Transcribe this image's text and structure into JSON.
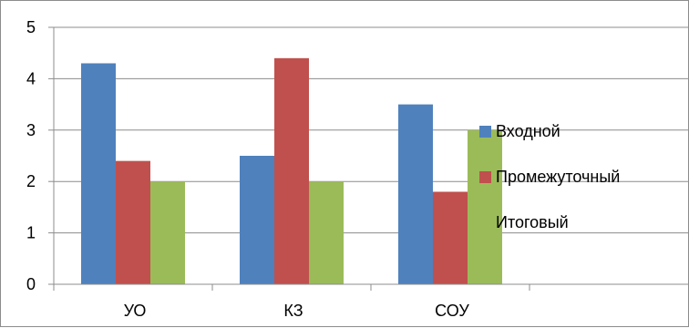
{
  "chart_data": {
    "type": "bar",
    "categories": [
      "УО",
      "КЗ",
      "СОУ"
    ],
    "series": [
      {
        "name": "Входной",
        "values": [
          4.3,
          2.5,
          3.5
        ],
        "color": "#4F81BD"
      },
      {
        "name": "Промежуточный",
        "values": [
          2.4,
          4.4,
          1.8
        ],
        "color": "#C0504D"
      },
      {
        "name": "Итоговый",
        "values": [
          2.0,
          2.0,
          3.0
        ],
        "color": "#9BBB59"
      }
    ],
    "ylim": [
      0,
      5
    ],
    "yticks": [
      "0",
      "1",
      "2",
      "3",
      "4",
      "5"
    ],
    "grid": true,
    "legend_position": "right"
  }
}
